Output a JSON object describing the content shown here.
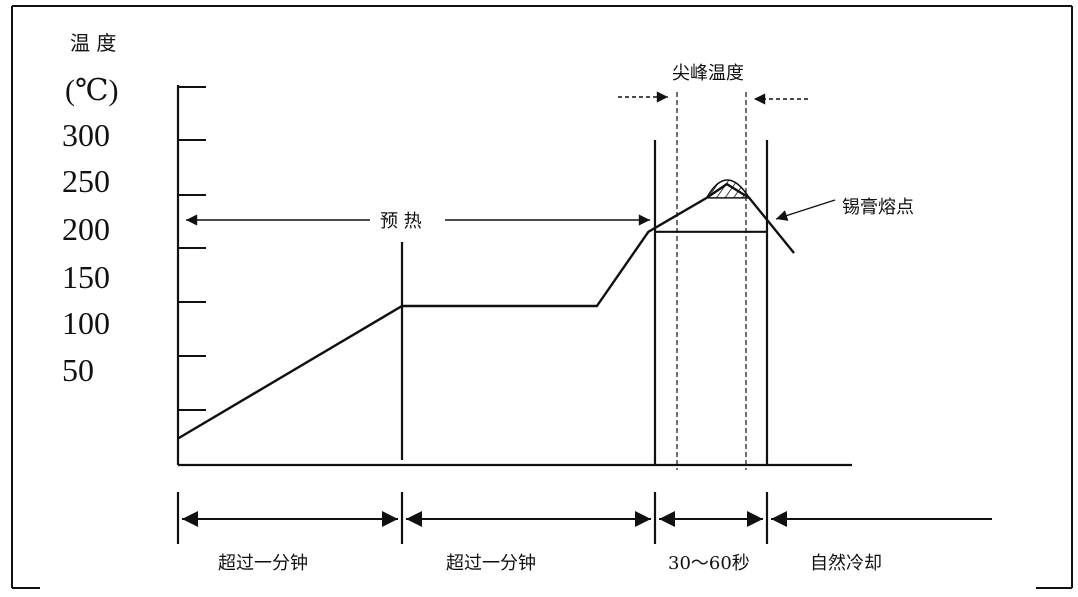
{
  "chart_data": {
    "type": "line",
    "title": "",
    "ylabel": "温 度",
    "yunit": "(℃)",
    "xlabel": "",
    "y_ticks": [
      300,
      250,
      200,
      150,
      100,
      50
    ],
    "ylim": [
      0,
      350
    ],
    "grid": false,
    "legend": "none",
    "series": [
      {
        "values": [
          {
            "x": 0,
            "y": 25
          },
          {
            "x": 1.0,
            "y": 150
          },
          {
            "x": 1.87,
            "y": 150
          },
          {
            "x": 2.1,
            "y": 220
          },
          {
            "x": 2.36,
            "y": 252
          },
          {
            "x": 2.45,
            "y": 265
          },
          {
            "x": 2.55,
            "y": 252
          },
          {
            "x": 2.75,
            "y": 200
          }
        ]
      }
    ],
    "reference_line": {
      "y": 220
    },
    "annotations": {
      "preheat": "预 热",
      "peak_temp": "尖峰温度",
      "melting_point": "锡膏熔点"
    },
    "phases": [
      "超过一分钟",
      "超过一分钟",
      "30～60秒",
      "自然冷却"
    ]
  }
}
